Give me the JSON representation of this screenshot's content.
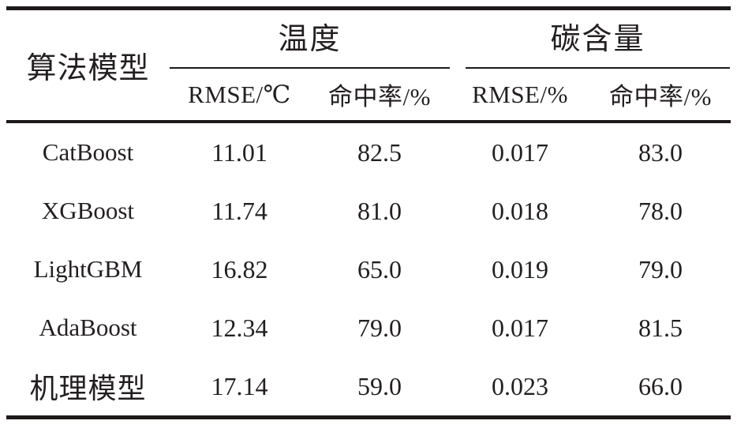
{
  "table": {
    "model_column_header": "算法模型",
    "groups": [
      {
        "label": "温度",
        "subs": [
          "RMSE/℃",
          "命中率/%"
        ]
      },
      {
        "label": "碳含量",
        "subs": [
          "RMSE/%",
          "命中率/%"
        ]
      }
    ],
    "rows": [
      {
        "model": "CatBoost",
        "values": [
          "11.01",
          "82.5",
          "0.017",
          "83.0"
        ]
      },
      {
        "model": "XGBoost",
        "values": [
          "11.74",
          "81.0",
          "0.018",
          "78.0"
        ]
      },
      {
        "model": "LightGBM",
        "values": [
          "16.82",
          "65.0",
          "0.019",
          "79.0"
        ]
      },
      {
        "model": "AdaBoost",
        "values": [
          "12.34",
          "79.0",
          "0.017",
          "81.5"
        ]
      },
      {
        "model": "机理模型",
        "values": [
          "17.14",
          "59.0",
          "0.023",
          "66.0"
        ]
      }
    ]
  },
  "colors": {
    "text": "#231f20",
    "rule": "#1d1a19",
    "background": "#ffffff"
  }
}
